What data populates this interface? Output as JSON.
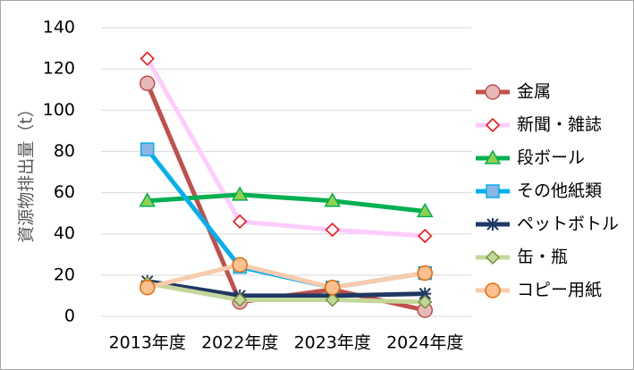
{
  "chart_data": {
    "type": "line",
    "y_label": "資源物排出量（t）",
    "categories": [
      "2013年度",
      "2022年度",
      "2023年度",
      "2024年度"
    ],
    "ylim": [
      0,
      140
    ],
    "yticks": [
      0,
      20,
      40,
      60,
      80,
      100,
      120,
      140
    ],
    "grid": true,
    "legend": "right",
    "series": [
      {
        "name": "金属",
        "color": "#c0504d",
        "marker": "circle",
        "marker_fill": "#e6b9b8",
        "values": [
          113,
          7,
          13,
          3
        ]
      },
      {
        "name": "新聞・雑誌",
        "color": "#ffccff",
        "marker": "diamond",
        "marker_fill": "#ffffff",
        "marker_stroke": "#ff0000",
        "values": [
          125,
          46,
          42,
          39
        ]
      },
      {
        "name": "段ボール",
        "color": "#00b050",
        "marker": "triangle",
        "marker_fill": "#92d050",
        "values": [
          56,
          59,
          56,
          51
        ]
      },
      {
        "name": "その他紙類",
        "color": "#00b0f0",
        "marker": "square",
        "marker_fill": "#8db4e2",
        "values": [
          81,
          24,
          14,
          21
        ]
      },
      {
        "name": "ペットボトル",
        "color": "#1f3864",
        "marker": "star",
        "marker_fill": "#1f3864",
        "values": [
          17,
          10,
          10,
          11
        ]
      },
      {
        "name": "缶・瓶",
        "color": "#c4d79b",
        "marker": "diamond",
        "marker_fill": "#c4d79b",
        "marker_stroke": "#76923c",
        "values": [
          16,
          8,
          8,
          7
        ]
      },
      {
        "name": "コピー用紙",
        "color": "#f8cbad",
        "marker": "circle",
        "marker_fill": "#fac090",
        "marker_stroke": "#e46c0a",
        "values": [
          14,
          25,
          14,
          21
        ]
      }
    ]
  }
}
